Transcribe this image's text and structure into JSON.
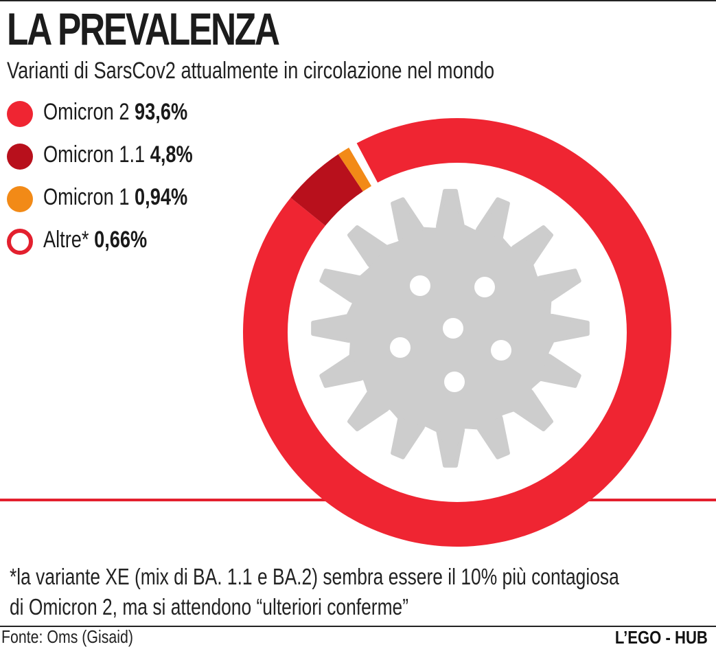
{
  "header": {
    "title": "LA PREVALENZA",
    "subtitle": "Varianti di SarsCov2 attualmente in circolazione nel mondo"
  },
  "legend": [
    {
      "name": "Omicron 2",
      "value_label": "93,6%",
      "color": "#ef2532"
    },
    {
      "name": "Omicron 1.1",
      "value_label": "4,8%",
      "color": "#b8101c"
    },
    {
      "name": "Omicron 1",
      "value_label": "0,94%",
      "color": "#f28a17"
    },
    {
      "name": "Altre*",
      "value_label": "0,66%",
      "color": "#ffffff"
    }
  ],
  "chart_data": {
    "type": "pie",
    "style": "donut",
    "title": "LA PREVALENZA",
    "subtitle": "Varianti di SarsCov2 attualmente in circolazione nel mondo",
    "categories": [
      "Omicron 2",
      "Omicron 1.1",
      "Omicron 1",
      "Altre*"
    ],
    "values": [
      93.6,
      4.8,
      0.94,
      0.66
    ],
    "unit": "%",
    "colors": [
      "#ef2532",
      "#b8101c",
      "#f28a17",
      "#ffffff"
    ],
    "legend_position": "top-left",
    "center_illustration": "virus-icon"
  },
  "footnote": {
    "line1": "*la variante XE (mix di BA. 1.1 e BA.2) sembra essere il 10% più contagiosa",
    "line2": "di Omicron 2, ma si attendono “ulteriori conferme”"
  },
  "footer": {
    "source": "Fonte: Oms (Gisaid)",
    "brand": "L’EGO - HUB"
  },
  "colors": {
    "accent_red": "#e3202e",
    "virus_gray": "#cdcdcd",
    "text": "#1a1a1a"
  }
}
